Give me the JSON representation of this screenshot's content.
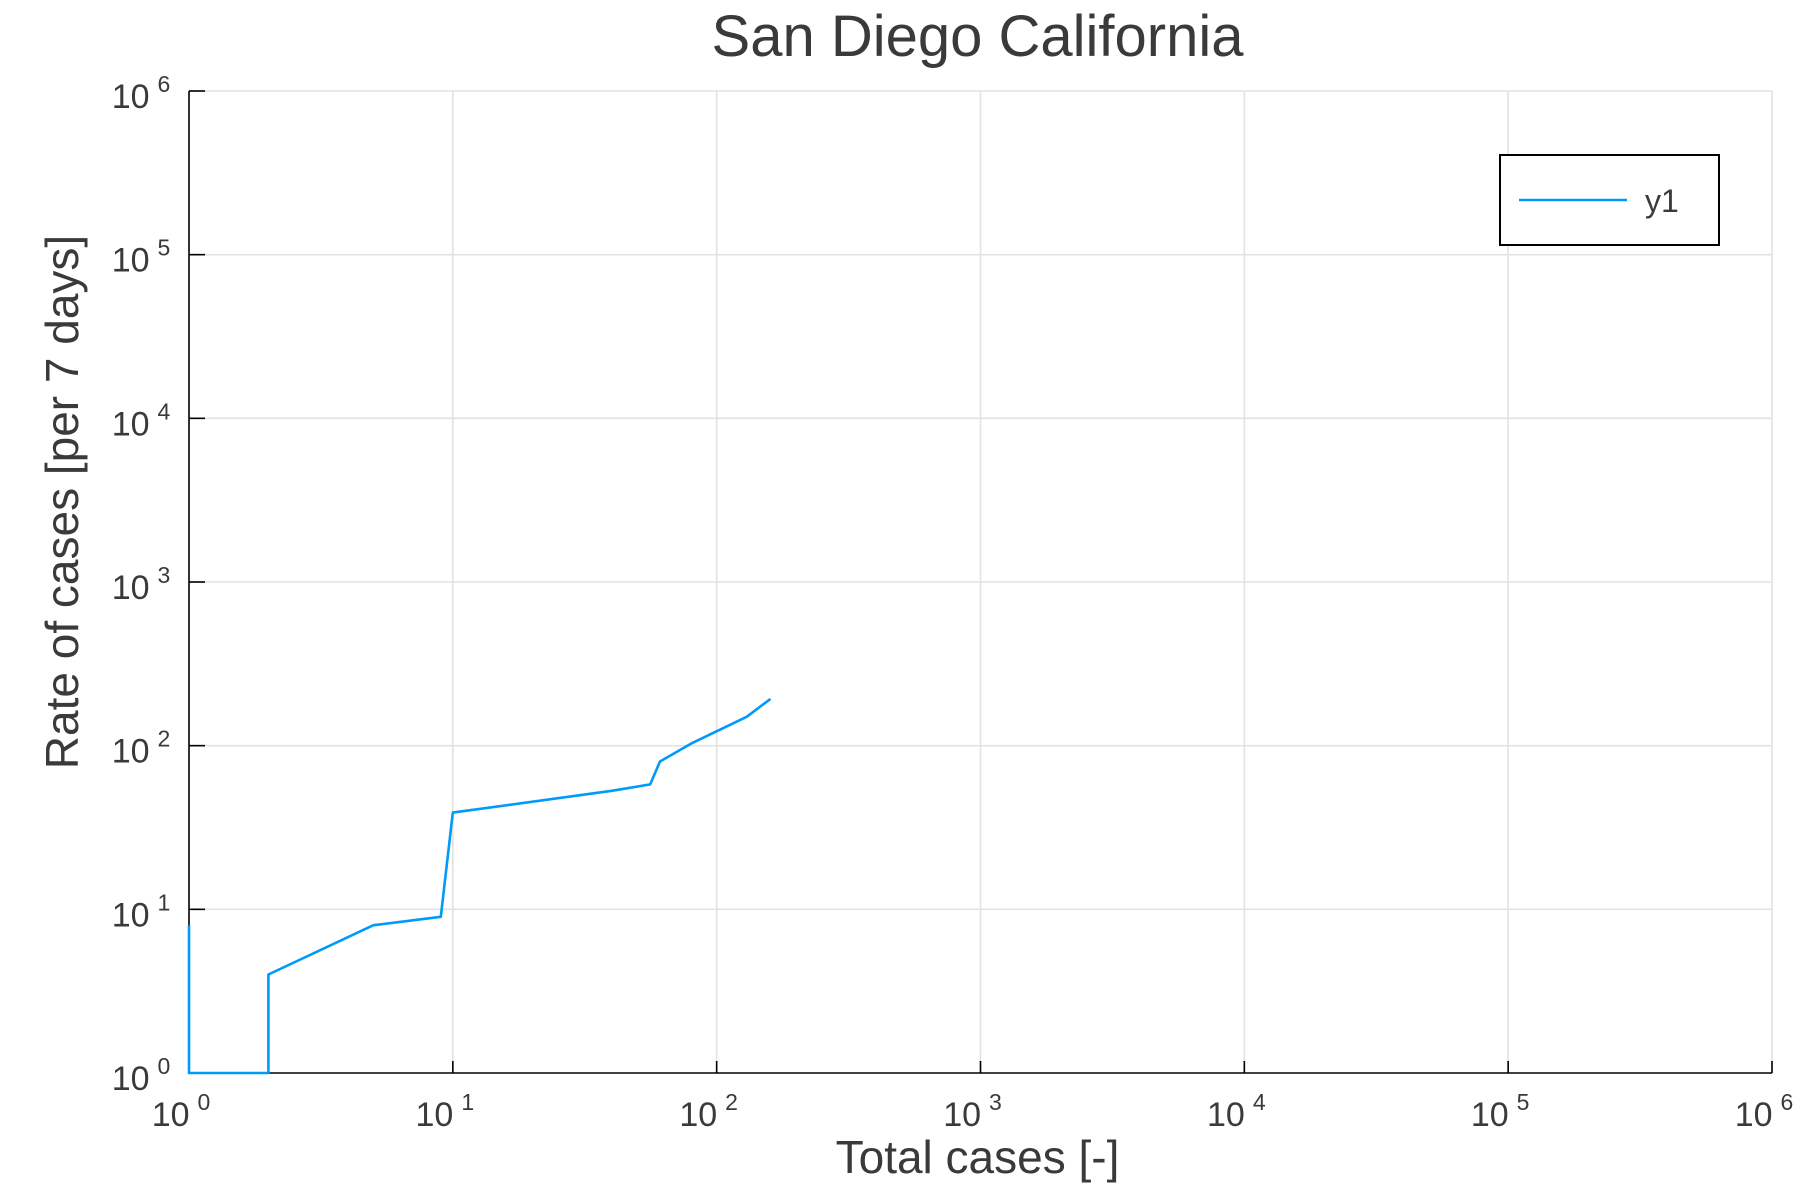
{
  "chart_data": {
    "type": "line",
    "title": "San Diego California",
    "xlabel": "Total cases [-]",
    "ylabel": "Rate of cases [per 7 days]",
    "x_scale": "log10",
    "y_scale": "log10",
    "xlim": [
      1,
      1000000
    ],
    "ylim": [
      1,
      1000000
    ],
    "x_tick_labels": [
      {
        "base": "10",
        "exp": "0"
      },
      {
        "base": "10",
        "exp": "1"
      },
      {
        "base": "10",
        "exp": "2"
      },
      {
        "base": "10",
        "exp": "3"
      },
      {
        "base": "10",
        "exp": "4"
      },
      {
        "base": "10",
        "exp": "5"
      },
      {
        "base": "10",
        "exp": "6"
      }
    ],
    "y_tick_labels": [
      {
        "base": "10",
        "exp": "0"
      },
      {
        "base": "10",
        "exp": "1"
      },
      {
        "base": "10",
        "exp": "2"
      },
      {
        "base": "10",
        "exp": "3"
      },
      {
        "base": "10",
        "exp": "4"
      },
      {
        "base": "10",
        "exp": "5"
      },
      {
        "base": "10",
        "exp": "6"
      }
    ],
    "grid": true,
    "legend_position": "top-right",
    "series": [
      {
        "name": "y1",
        "color": "#009af9",
        "x": [
          1,
          1,
          1,
          2,
          2,
          5,
          9,
          10,
          40,
          56,
          61,
          80,
          130,
          160
        ],
        "y": [
          8,
          1,
          1,
          1,
          4,
          8,
          9,
          39,
          53,
          58,
          80,
          103,
          150,
          193
        ]
      }
    ]
  }
}
